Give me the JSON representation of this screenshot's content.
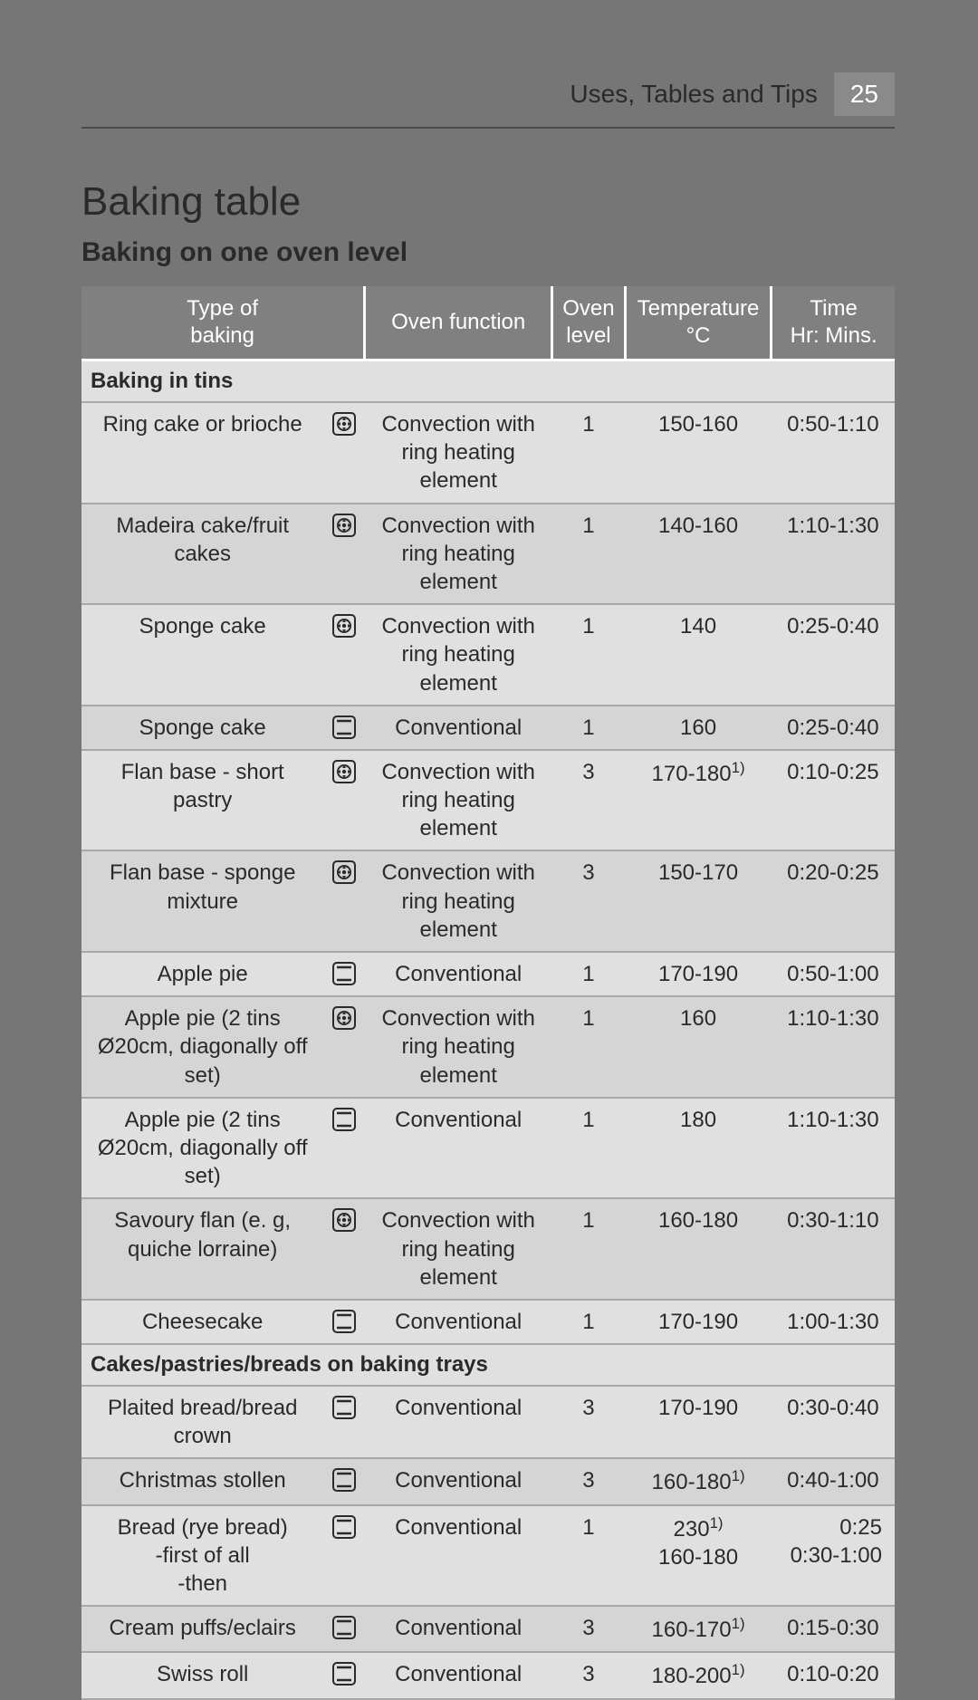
{
  "header": {
    "section": "Uses, Tables and Tips",
    "page_number": "25"
  },
  "title": "Baking table",
  "subtitle": "Baking on one oven level",
  "columns": {
    "type": "Type of\nbaking",
    "func": "Oven function",
    "level": "Oven\nlevel",
    "temp": "Temperature\n°C",
    "time": "Time\nHr: Mins."
  },
  "icons": {
    "convect": "convection-ring-icon",
    "convent": "conventional-icon"
  },
  "sections": [
    {
      "heading": "Baking in tins",
      "rows": [
        {
          "type": "Ring cake or brioche",
          "icon": "convect",
          "func": "Convection with ring heating element",
          "level": "1",
          "temp": "150-160",
          "time": "0:50-1:10"
        },
        {
          "type": "Madeira cake/fruit cakes",
          "icon": "convect",
          "func": "Convection with ring heating element",
          "level": "1",
          "temp": "140-160",
          "time": "1:10-1:30"
        },
        {
          "type": "Sponge cake",
          "icon": "convect",
          "func": "Convection with ring heating element",
          "level": "1",
          "temp": "140",
          "time": "0:25-0:40"
        },
        {
          "type": "Sponge cake",
          "icon": "convent",
          "func": "Conventional",
          "level": "1",
          "temp": "160",
          "time": "0:25-0:40"
        },
        {
          "type": "Flan base - short pastry",
          "icon": "convect",
          "func": "Convection with ring heating element",
          "level": "3",
          "temp": "170-180",
          "temp_note": "1)",
          "time": "0:10-0:25"
        },
        {
          "type": "Flan base - sponge mixture",
          "icon": "convect",
          "func": "Convection with ring heating element",
          "level": "3",
          "temp": "150-170",
          "time": "0:20-0:25"
        },
        {
          "type": "Apple pie",
          "icon": "convent",
          "func": "Conventional",
          "level": "1",
          "temp": "170-190",
          "time": "0:50-1:00"
        },
        {
          "type": "Apple pie (2 tins Ø20cm, diagonally off set)",
          "icon": "convect",
          "func": "Convection with ring heating element",
          "level": "1",
          "temp": "160",
          "time": "1:10-1:30"
        },
        {
          "type": "Apple pie (2 tins Ø20cm, diagonally off set)",
          "icon": "convent",
          "func": "Conventional",
          "level": "1",
          "temp": "180",
          "time": "1:10-1:30"
        },
        {
          "type": "Savoury flan (e. g, quiche lorraine)",
          "icon": "convect",
          "func": "Convection with ring heating element",
          "level": "1",
          "temp": "160-180",
          "time": "0:30-1:10"
        },
        {
          "type": "Cheesecake",
          "icon": "convent",
          "func": "Conventional",
          "level": "1",
          "temp": "170-190",
          "time": "1:00-1:30"
        }
      ]
    },
    {
      "heading": "Cakes/pastries/breads on baking trays",
      "rows": [
        {
          "type": "Plaited bread/bread crown",
          "icon": "convent",
          "func": "Conventional",
          "level": "3",
          "temp": "170-190",
          "time": "0:30-0:40"
        },
        {
          "type": "Christmas stollen",
          "icon": "convent",
          "func": "Conventional",
          "level": "3",
          "temp": "160-180",
          "temp_note": "1)",
          "time": "0:40-1:00"
        },
        {
          "type": "Bread (rye bread)\n-first of all\n-then",
          "icon": "convent",
          "func": "Conventional",
          "level": "1",
          "temp_multi": [
            {
              "v": "230",
              "note": "1)"
            },
            {
              "v": "160-180"
            }
          ],
          "time_multi": [
            "0:25",
            "0:30-1:00"
          ]
        },
        {
          "type": "Cream puffs/eclairs",
          "icon": "convent",
          "func": "Conventional",
          "level": "3",
          "temp": "160-170",
          "temp_note": "1)",
          "time": "0:15-0:30"
        },
        {
          "type": "Swiss roll",
          "icon": "convent",
          "func": "Conventional",
          "level": "3",
          "temp": "180-200",
          "temp_note": "1)",
          "time": "0:10-0:20"
        }
      ]
    }
  ],
  "style": {
    "page_bg": "#767676",
    "row_zebra": "#d5d5d5",
    "row_plain": "#e0e0e0",
    "header_bg": "#808080"
  }
}
